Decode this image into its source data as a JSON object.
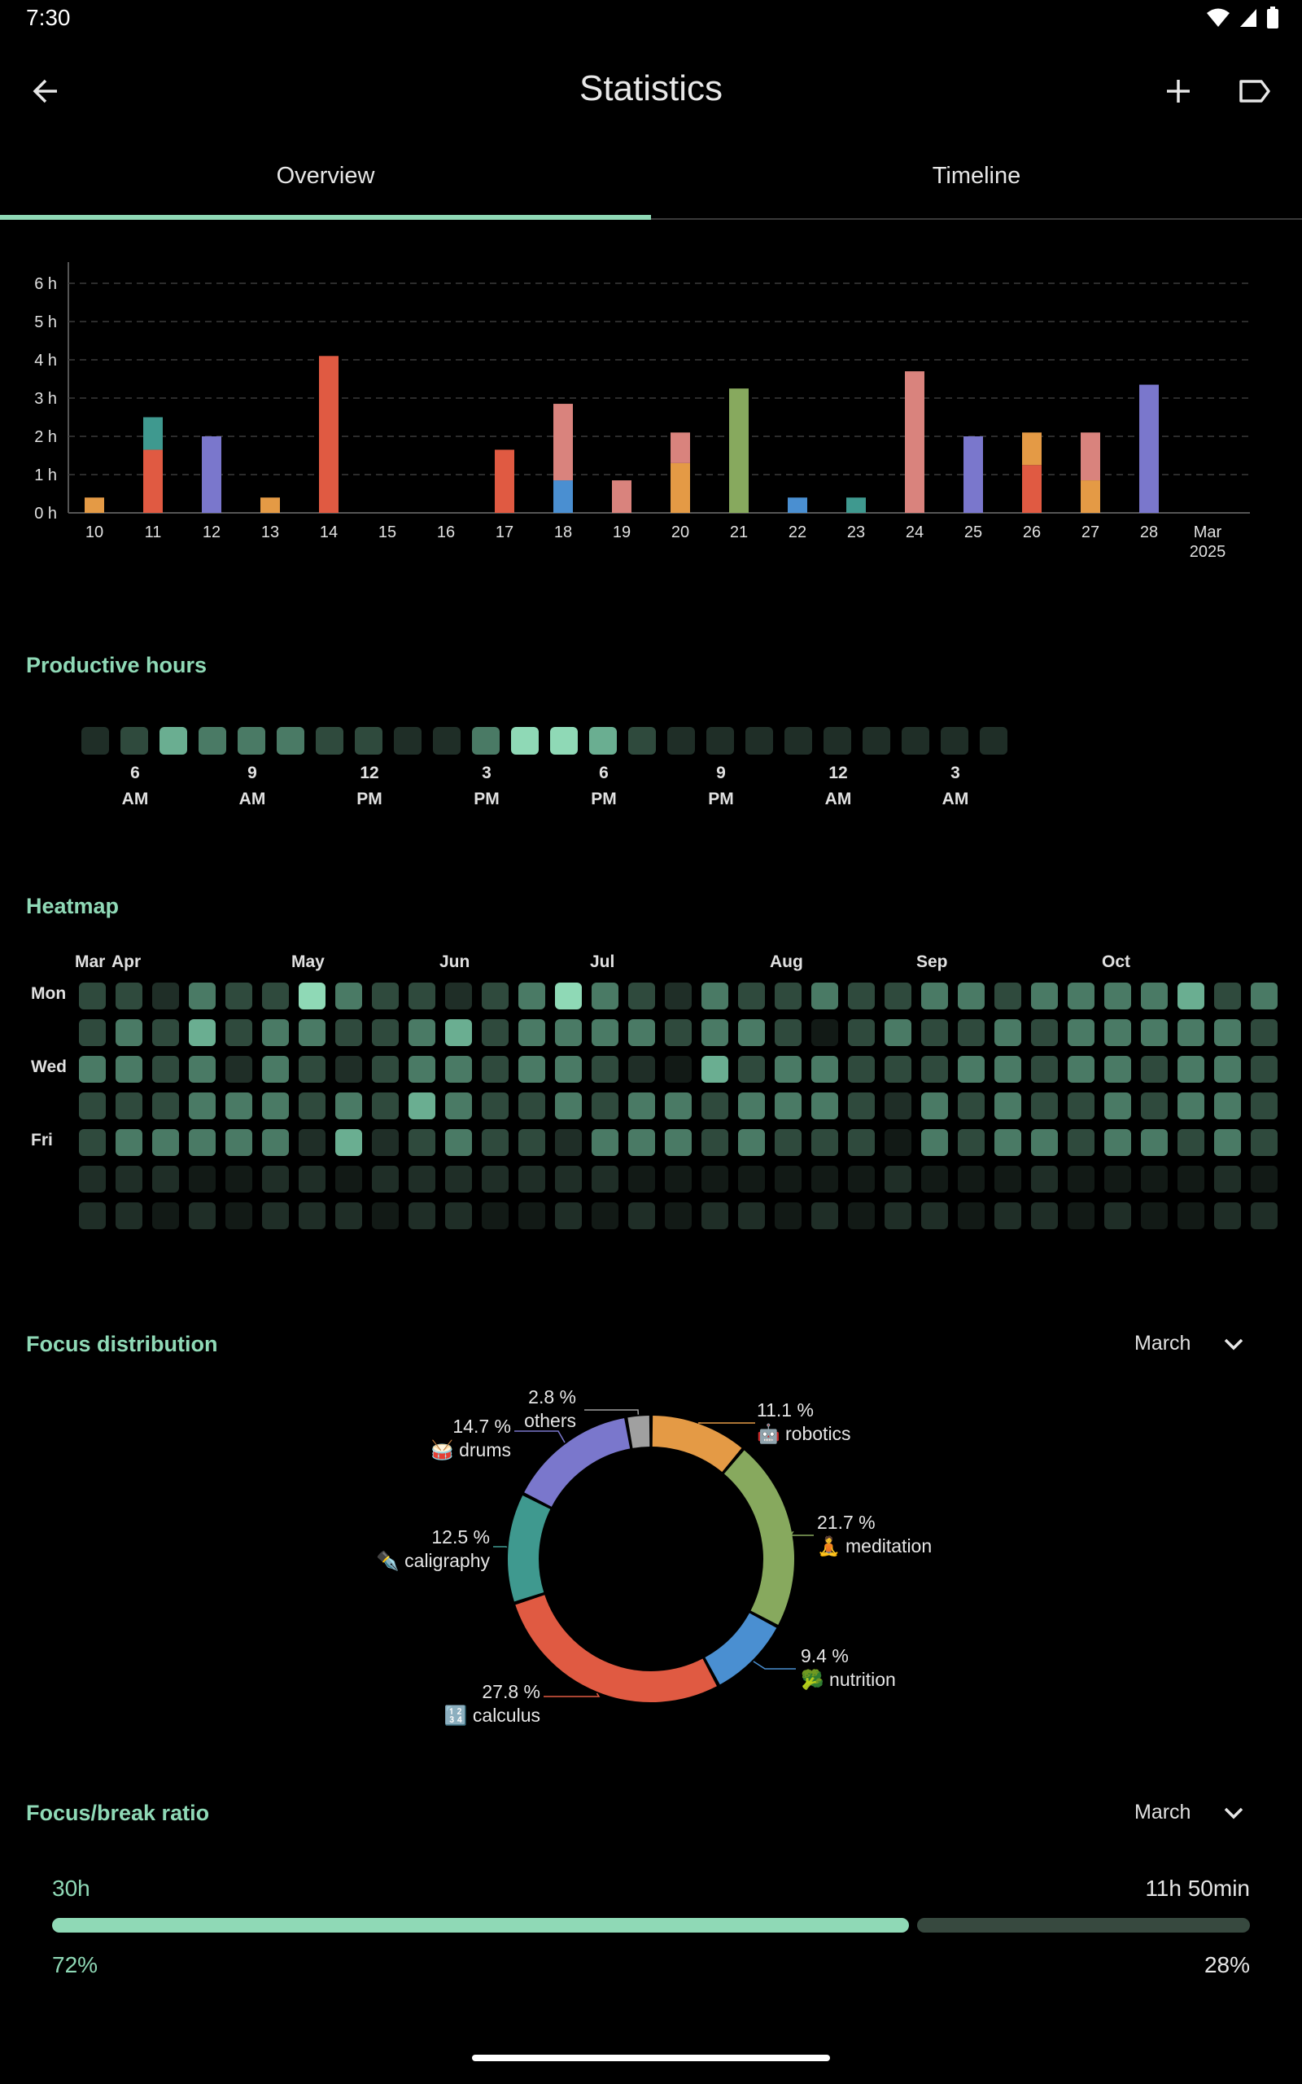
{
  "status_bar": {
    "time": "7:30"
  },
  "app_bar": {
    "title": "Statistics"
  },
  "tabs": [
    {
      "label": "Overview"
    },
    {
      "label": "Timeline"
    }
  ],
  "colors": {
    "accent": "#8fd9b6",
    "robotics": "#e49a45",
    "meditation": "#87a95e",
    "nutrition": "#4a8fd1",
    "calculus": "#e05a42",
    "caligraphy": "#3f998f",
    "drums": "#7a77cc",
    "others": "#a0a0a0",
    "pink": "#d9837d"
  },
  "chart_data": [
    {
      "type": "bar",
      "stacked": true,
      "ylabel_unit": "h",
      "y_ticks": [
        "0 h",
        "1 h",
        "2 h",
        "3 h",
        "4 h",
        "5 h",
        "6 h"
      ],
      "ylim": [
        0,
        6
      ],
      "categories": [
        "10",
        "11",
        "12",
        "13",
        "14",
        "15",
        "16",
        "17",
        "18",
        "19",
        "20",
        "21",
        "22",
        "23",
        "24",
        "25",
        "26",
        "27",
        "28",
        "Mar\n2025"
      ],
      "category_labels": [
        [
          "10"
        ],
        [
          "11"
        ],
        [
          "12"
        ],
        [
          "13"
        ],
        [
          "14"
        ],
        [
          "15"
        ],
        [
          "16"
        ],
        [
          "17"
        ],
        [
          "18"
        ],
        [
          "19"
        ],
        [
          "20"
        ],
        [
          "21"
        ],
        [
          "22"
        ],
        [
          "23"
        ],
        [
          "24"
        ],
        [
          "25"
        ],
        [
          "26"
        ],
        [
          "27"
        ],
        [
          "28"
        ],
        [
          "Mar",
          "2025"
        ]
      ],
      "grid": true,
      "bars": [
        [
          {
            "c": "robotics",
            "v": 0.4
          }
        ],
        [
          {
            "c": "calculus",
            "v": 1.65
          },
          {
            "c": "caligraphy",
            "v": 0.85
          }
        ],
        [
          {
            "c": "drums",
            "v": 2.0
          }
        ],
        [
          {
            "c": "robotics",
            "v": 0.4
          }
        ],
        [
          {
            "c": "calculus",
            "v": 4.1
          }
        ],
        [],
        [],
        [
          {
            "c": "calculus",
            "v": 1.65
          }
        ],
        [
          {
            "c": "nutrition",
            "v": 0.85
          },
          {
            "c": "pink",
            "v": 2.0
          }
        ],
        [
          {
            "c": "pink",
            "v": 0.85
          }
        ],
        [
          {
            "c": "robotics",
            "v": 1.3
          },
          {
            "c": "pink",
            "v": 0.8
          }
        ],
        [
          {
            "c": "meditation",
            "v": 3.25
          }
        ],
        [
          {
            "c": "nutrition",
            "v": 0.4
          }
        ],
        [
          {
            "c": "caligraphy",
            "v": 0.4
          }
        ],
        [
          {
            "c": "pink",
            "v": 3.7
          }
        ],
        [
          {
            "c": "drums",
            "v": 2.0
          }
        ],
        [
          {
            "c": "calculus",
            "v": 1.25
          },
          {
            "c": "robotics",
            "v": 0.85
          }
        ],
        [
          {
            "c": "robotics",
            "v": 0.85
          },
          {
            "c": "pink",
            "v": 1.25
          }
        ],
        [
          {
            "c": "drums",
            "v": 3.35
          }
        ],
        []
      ]
    },
    {
      "type": "heatmap",
      "title": "Productive hours",
      "levels": [
        1,
        2,
        4,
        3,
        3,
        3,
        2,
        2,
        1,
        1,
        3,
        5,
        5,
        4,
        2,
        1,
        1,
        1,
        1,
        1,
        1,
        1,
        1,
        1
      ],
      "labels": [
        [
          "6",
          "AM"
        ],
        [
          "9",
          "AM"
        ],
        [
          "12",
          "PM"
        ],
        [
          "3",
          "PM"
        ],
        [
          "6",
          "PM"
        ],
        [
          "9",
          "PM"
        ],
        [
          "12",
          "AM"
        ],
        [
          "3",
          "AM"
        ]
      ]
    },
    {
      "type": "heatmap",
      "title": "Heatmap",
      "months": [
        "Mar",
        "Apr",
        "May",
        "Jun",
        "Jul",
        "Aug",
        "Sep",
        "Oct"
      ],
      "days": [
        "Mon",
        "",
        "Wed",
        "",
        "Fri",
        "",
        ""
      ],
      "rows": [
        [
          2,
          2,
          1,
          3,
          2,
          2,
          5,
          3,
          2,
          2,
          1,
          2,
          3,
          5,
          3,
          2,
          1,
          3,
          2,
          2,
          3,
          2,
          2,
          3,
          3,
          2,
          3,
          3,
          3,
          3,
          4,
          2,
          3
        ],
        [
          2,
          3,
          2,
          4,
          2,
          3,
          3,
          2,
          2,
          3,
          4,
          2,
          3,
          3,
          3,
          3,
          2,
          3,
          3,
          2,
          0,
          2,
          3,
          2,
          2,
          3,
          2,
          3,
          3,
          3,
          3,
          3,
          2
        ],
        [
          3,
          3,
          2,
          3,
          1,
          3,
          2,
          1,
          2,
          3,
          3,
          2,
          3,
          3,
          2,
          1,
          0,
          4,
          2,
          3,
          3,
          2,
          2,
          2,
          3,
          3,
          2,
          3,
          3,
          2,
          3,
          3,
          2
        ],
        [
          2,
          2,
          2,
          3,
          3,
          3,
          2,
          3,
          2,
          4,
          3,
          2,
          2,
          3,
          2,
          3,
          3,
          2,
          3,
          3,
          3,
          2,
          1,
          3,
          2,
          3,
          2,
          2,
          3,
          2,
          3,
          3,
          2
        ],
        [
          2,
          3,
          3,
          3,
          3,
          3,
          1,
          4,
          1,
          2,
          3,
          2,
          2,
          1,
          3,
          3,
          3,
          2,
          3,
          2,
          2,
          2,
          0,
          3,
          2,
          3,
          3,
          2,
          3,
          3,
          2,
          3,
          2
        ],
        [
          1,
          1,
          1,
          0,
          0,
          1,
          1,
          0,
          1,
          1,
          1,
          1,
          1,
          1,
          1,
          0,
          0,
          0,
          0,
          0,
          0,
          0,
          1,
          0,
          0,
          0,
          1,
          0,
          0,
          0,
          0,
          1,
          0
        ],
        [
          1,
          1,
          0,
          1,
          0,
          1,
          1,
          1,
          0,
          1,
          1,
          0,
          0,
          1,
          0,
          1,
          0,
          1,
          1,
          0,
          1,
          0,
          1,
          1,
          0,
          1,
          1,
          0,
          1,
          0,
          0,
          1,
          1
        ]
      ]
    },
    {
      "type": "pie",
      "donut": true,
      "title": "Focus distribution",
      "slices": [
        {
          "name": "robotics",
          "emoji": "🤖",
          "pct_label": "11.1 %",
          "value": 11.1,
          "color": "#e49a45"
        },
        {
          "name": "meditation",
          "emoji": "🧘",
          "pct_label": "21.7 %",
          "value": 21.7,
          "color": "#87a95e"
        },
        {
          "name": "nutrition",
          "emoji": "🥦",
          "pct_label": "9.4 %",
          "value": 9.4,
          "color": "#4a8fd1"
        },
        {
          "name": "calculus",
          "emoji": "🔢",
          "pct_label": "27.8 %",
          "value": 27.8,
          "color": "#e05a42"
        },
        {
          "name": "caligraphy",
          "emoji": "✒️",
          "pct_label": "12.5 %",
          "value": 12.5,
          "color": "#3f998f"
        },
        {
          "name": "drums",
          "emoji": "🥁",
          "pct_label": "14.7 %",
          "value": 14.7,
          "color": "#7a77cc"
        },
        {
          "name": "others",
          "emoji": "",
          "pct_label": "2.8 %",
          "value": 2.8,
          "color": "#a0a0a0"
        }
      ]
    }
  ],
  "productive_hours": {
    "title": "Productive hours"
  },
  "heatmap": {
    "title": "Heatmap"
  },
  "focus_distribution": {
    "title": "Focus distribution",
    "period": "March"
  },
  "focus_break": {
    "title": "Focus/break ratio",
    "period": "March",
    "focus_time": "30h",
    "break_time": "11h 50min",
    "focus_pct_label": "72%",
    "break_pct_label": "28%",
    "focus_fraction": 0.72
  }
}
